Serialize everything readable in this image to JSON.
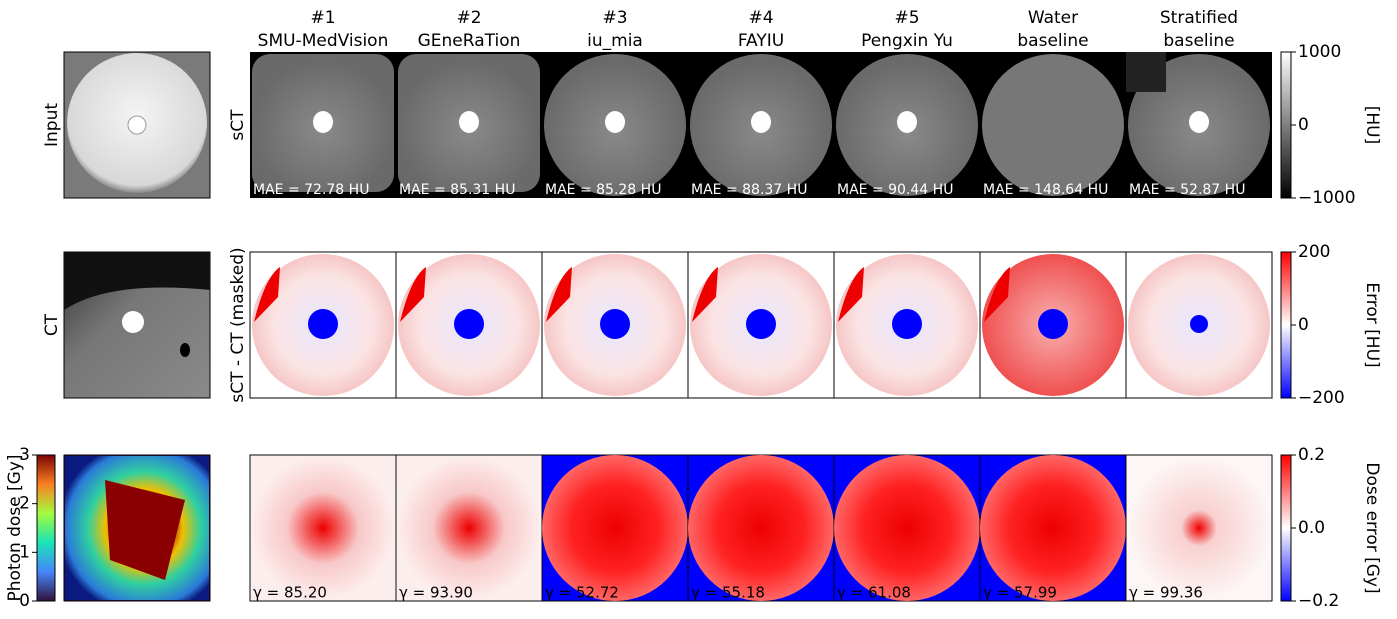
{
  "columns": [
    {
      "rank": "#1",
      "name": "SMU-MedVision",
      "mae": "MAE = 72.78 HU",
      "gamma": "γ = 85.20"
    },
    {
      "rank": "#2",
      "name": "GEneRaTion",
      "mae": "MAE = 85.31 HU",
      "gamma": "γ = 93.90"
    },
    {
      "rank": "#3",
      "name": "iu_mia",
      "mae": "MAE = 85.28 HU",
      "gamma": "γ = 52.72"
    },
    {
      "rank": "#4",
      "name": "FAYIU",
      "mae": "MAE = 88.37 HU",
      "gamma": "γ = 55.18"
    },
    {
      "rank": "#5",
      "name": "Pengxin Yu",
      "mae": "MAE = 90.44 HU",
      "gamma": "γ = 61.08"
    },
    {
      "rank": "Water",
      "name": "baseline",
      "mae": "MAE = 148.64 HU",
      "gamma": "γ = 57.99"
    },
    {
      "rank": "Stratified",
      "name": "baseline",
      "mae": "MAE = 52.87 HU",
      "gamma": "γ = 99.36"
    }
  ],
  "row_labels": {
    "input": "Input",
    "sct": "sCT",
    "ct": "CT",
    "diff": "sCT - CT (masked)",
    "dose": "Photon dose [Gy]"
  },
  "colorbars": [
    {
      "label": "[HU]",
      "ticks": [
        "1000",
        "0",
        "−1000"
      ]
    },
    {
      "label": "Error [HU]",
      "ticks": [
        "200",
        "0",
        "−200"
      ]
    },
    {
      "label": "Dose error [Gy]",
      "ticks": [
        "0.2",
        "0.0",
        "−0.2"
      ]
    }
  ],
  "dose_colorbar": {
    "ticks": [
      "3",
      "2",
      "1",
      "0"
    ]
  }
}
